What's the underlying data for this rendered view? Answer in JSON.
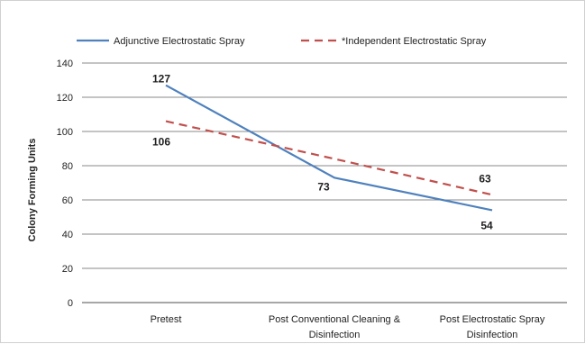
{
  "chart_data": {
    "type": "line",
    "categories": [
      "Pretest",
      "Post Conventional Cleaning & Disinfection",
      "Post Electrostatic Spray Disinfection"
    ],
    "category_lines": [
      [
        "Pretest"
      ],
      [
        "Post Conventional Cleaning &",
        "Disinfection"
      ],
      [
        "Post Electrostatic Spray",
        "Disinfection"
      ]
    ],
    "series": [
      {
        "name": "Adjunctive Electrostatic Spray",
        "values": [
          127,
          73,
          54
        ],
        "color": "#4f81bd",
        "style": "solid"
      },
      {
        "name": "*Independent Electrostatic Spray",
        "values": [
          106,
          84,
          63
        ],
        "color": "#c0504d",
        "style": "dashed",
        "data_labels": [
          106,
          null,
          63
        ]
      }
    ],
    "ylabel": "Colony Forming Units",
    "xlabel": "",
    "ylim": [
      0,
      140
    ],
    "yticks": [
      0,
      20,
      40,
      60,
      80,
      100,
      120,
      140
    ],
    "grid": true,
    "legend_position": "top"
  }
}
